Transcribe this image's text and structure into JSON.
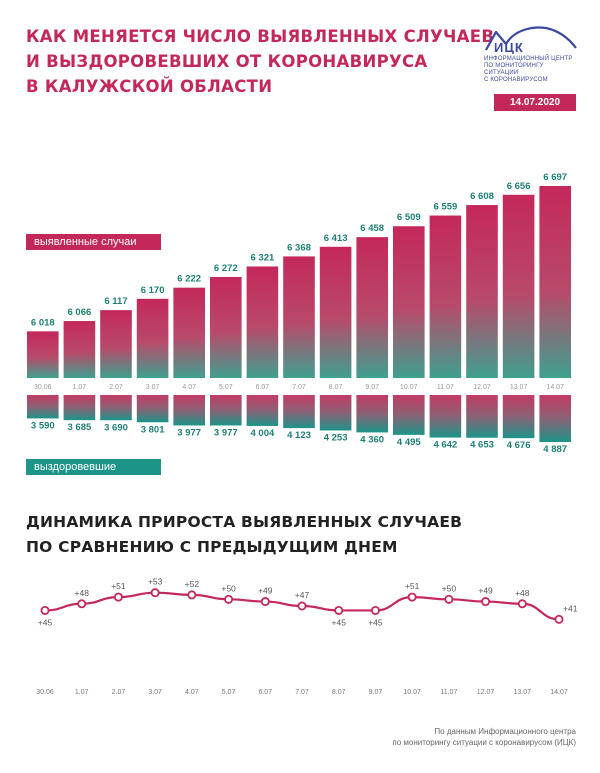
{
  "header": {
    "title_lines": [
      "КАК МЕНЯЕТСЯ ЧИСЛО ВЫЯВЛЕННЫХ СЛУЧАЕВ",
      "И ВЫЗДОРОВЕВШИХ ОТ КОРОНАВИРУСА",
      "В КАЛУЖСКОЙ ОБЛАСТИ"
    ],
    "date": "14.07.2020"
  },
  "logo": {
    "abbr": "ИЦК",
    "lines": [
      "ИНФОРМАЦИОННЫЙ ЦЕНТР",
      "ПО МОНИТОРИНГУ СИТУАЦИИ",
      "С КОРОНАВИРУСОМ"
    ]
  },
  "colors": {
    "cases": "#c4285a",
    "recovered": "#1d9488",
    "line": "#c4285a",
    "text_cases": "#1d7f74"
  },
  "chart_data": [
    {
      "type": "bar",
      "categories": [
        "30.06",
        "1.07",
        "2.07",
        "3.07",
        "4.07",
        "5.07",
        "6.07",
        "7.07",
        "8.07",
        "9.07",
        "10.07",
        "11.07",
        "12.07",
        "13.07",
        "14.07"
      ],
      "series": [
        {
          "name": "выявленные случаи",
          "values": [
            6018,
            6066,
            6117,
            6170,
            6222,
            6272,
            6321,
            6368,
            6413,
            6458,
            6509,
            6559,
            6608,
            6656,
            6697
          ],
          "labels": [
            "6 018",
            "6 066",
            "6 117",
            "6 170",
            "6 222",
            "6 272",
            "6 321",
            "6 368",
            "6 413",
            "6 458",
            "6 509",
            "6 559",
            "6 608",
            "6 656",
            "6 697"
          ]
        },
        {
          "name": "выздоровевшие",
          "values": [
            3590,
            3685,
            3690,
            3801,
            3977,
            3977,
            4004,
            4123,
            4253,
            4360,
            4495,
            4642,
            4653,
            4676,
            4887
          ],
          "labels": [
            "3 590",
            "3 685",
            "3 690",
            "3 801",
            "3 977",
            "3 977",
            "4 004",
            "4 123",
            "4 253",
            "4 360",
            "4 495",
            "4 642",
            "4 653",
            "4 676",
            "4 887"
          ]
        }
      ]
    },
    {
      "type": "line",
      "title_lines": [
        "ДИНАМИКА ПРИРОСТА ВЫЯВЛЕННЫХ СЛУЧАЕВ",
        "ПО СРАВНЕНИЮ С ПРЕДЫДУЩИМ ДНЕМ"
      ],
      "categories": [
        "30.06",
        "1.07",
        "2.07",
        "3.07",
        "4.07",
        "5.07",
        "6.07",
        "7.07",
        "8.07",
        "9.07",
        "10.07",
        "11.07",
        "12.07",
        "13.07",
        "14.07"
      ],
      "values": [
        45,
        48,
        51,
        53,
        52,
        50,
        49,
        47,
        45,
        45,
        51,
        50,
        49,
        48,
        41
      ],
      "labels": [
        "+45",
        "+48",
        "+51",
        "+53",
        "+52",
        "+50",
        "+49",
        "+47",
        "+45",
        "+45",
        "+51",
        "+50",
        "+49",
        "+48",
        "+41"
      ]
    }
  ],
  "footnote": [
    "По данным Информационного центра",
    "по мониторингу ситуации с коронавирусом (ИЦК)"
  ]
}
